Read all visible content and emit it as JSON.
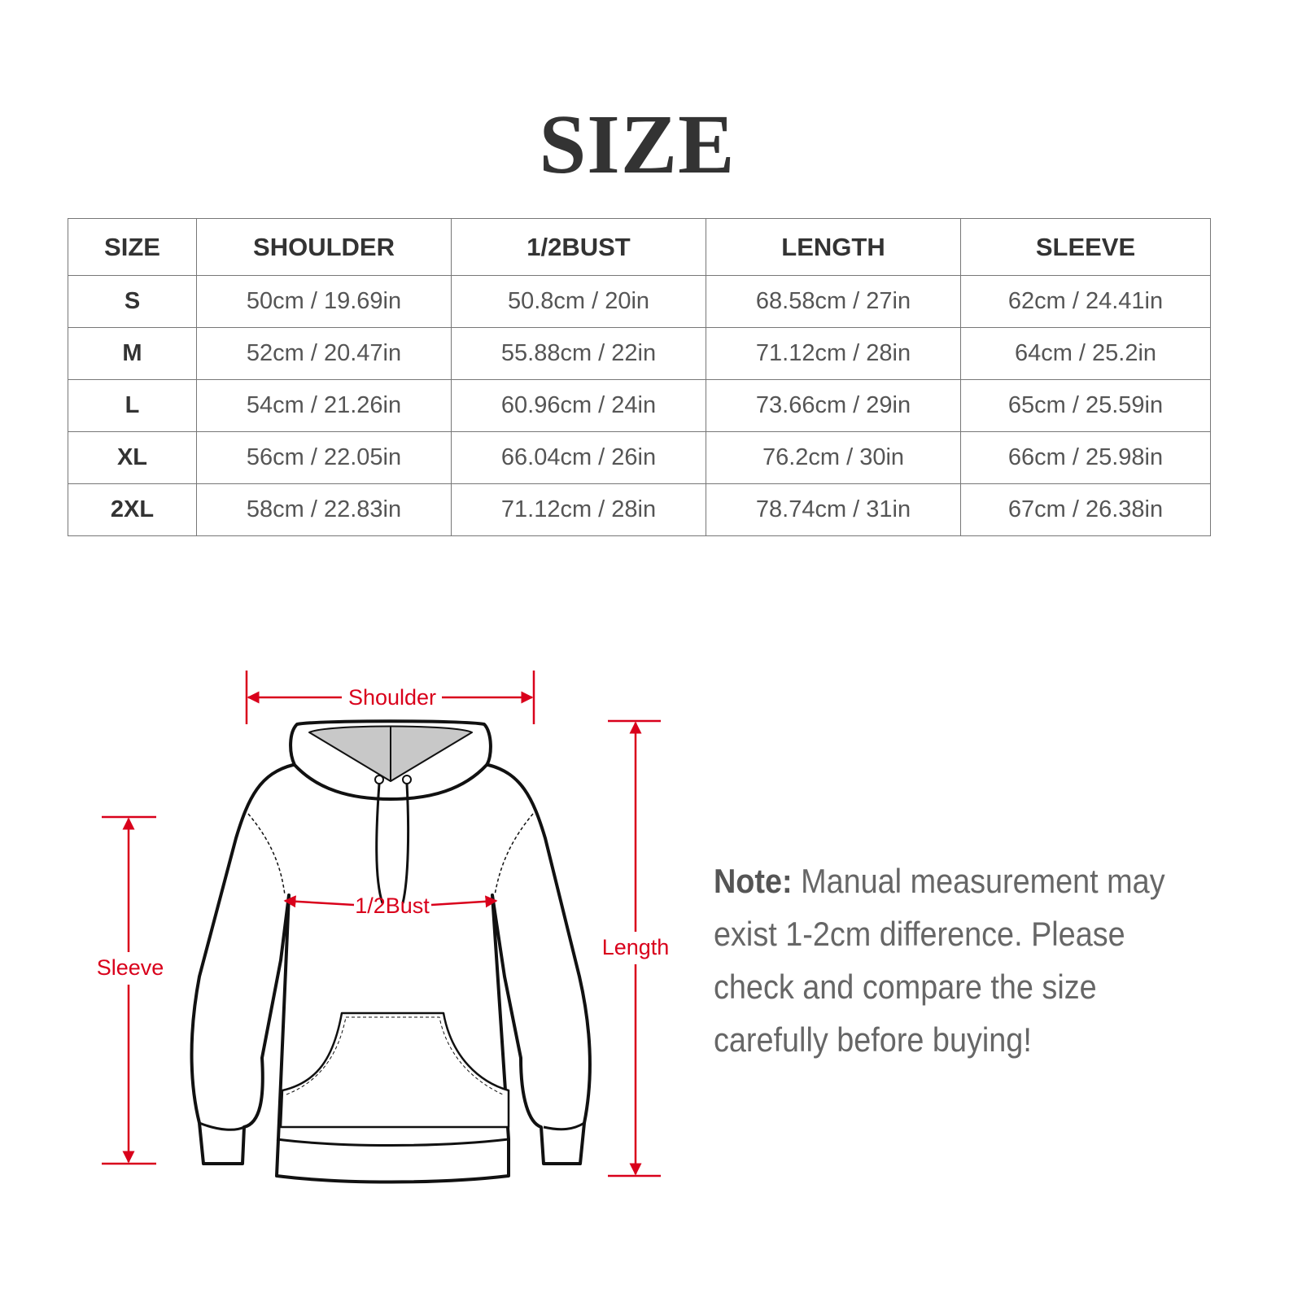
{
  "title": "SIZE",
  "table": {
    "headers": [
      "SIZE",
      "SHOULDER",
      "1/2BUST",
      "LENGTH",
      "SLEEVE"
    ],
    "rows": [
      [
        "S",
        "50cm / 19.69in",
        "50.8cm / 20in",
        "68.58cm / 27in",
        "62cm / 24.41in"
      ],
      [
        "M",
        "52cm / 20.47in",
        "55.88cm / 22in",
        "71.12cm / 28in",
        "64cm / 25.2in"
      ],
      [
        "L",
        "54cm / 21.26in",
        "60.96cm / 24in",
        "73.66cm / 29in",
        "65cm / 25.59in"
      ],
      [
        "XL",
        "56cm / 22.05in",
        "66.04cm / 26in",
        "76.2cm / 30in",
        "66cm / 25.98in"
      ],
      [
        "2XL",
        "58cm / 22.83in",
        "71.12cm / 28in",
        "78.74cm / 31in",
        "67cm / 26.38in"
      ]
    ]
  },
  "diagram": {
    "shoulder": "Shoulder",
    "bust": "1/2Bust",
    "sleeve": "Sleeve",
    "length": "Length",
    "accent_color": "#d9001b"
  },
  "note": {
    "label": "Note:",
    "text": "Manual measurement may exist 1-2cm difference. Please check and compare the size carefully before buying!"
  }
}
